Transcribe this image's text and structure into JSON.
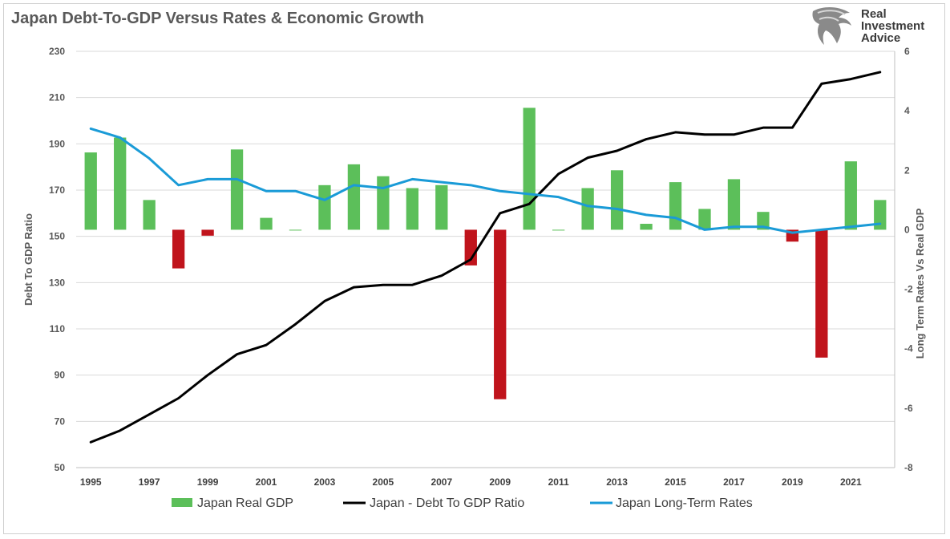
{
  "chart_data": {
    "type": "bar+line",
    "title": "Japan Debt-To-GDP Versus Rates & Economic Growth",
    "ylabel_left": "Debt To GDP Ratio",
    "ylabel_right": "Long Term Rates Vs Real GDP",
    "ylim_left": [
      50,
      230
    ],
    "ylim_right": [
      -8,
      6
    ],
    "yticks_left": [
      "50",
      "70",
      "90",
      "110",
      "130",
      "150",
      "170",
      "190",
      "210",
      "230"
    ],
    "yticks_right": [
      "-8",
      "-6",
      "-4",
      "-2",
      "0",
      "2",
      "4",
      "6"
    ],
    "x": [
      1995,
      1996,
      1997,
      1998,
      1999,
      2000,
      2001,
      2002,
      2003,
      2004,
      2005,
      2006,
      2007,
      2008,
      2009,
      2010,
      2011,
      2012,
      2013,
      2014,
      2015,
      2016,
      2017,
      2018,
      2019,
      2020,
      2021,
      2022
    ],
    "xticks": [
      "1995",
      "1997",
      "1999",
      "2001",
      "2003",
      "2005",
      "2007",
      "2009",
      "2011",
      "2013",
      "2015",
      "2017",
      "2019",
      "2021"
    ],
    "series": [
      {
        "name": "Japan Real GDP",
        "type": "bar",
        "axis": "right",
        "values": [
          2.6,
          3.1,
          1.0,
          -1.3,
          -0.2,
          2.7,
          0.4,
          0.0,
          1.5,
          2.2,
          1.8,
          1.4,
          1.5,
          -1.2,
          -5.7,
          4.1,
          0.0,
          1.4,
          2.0,
          0.2,
          1.6,
          0.7,
          1.7,
          0.6,
          -0.4,
          -4.3,
          2.3,
          1.0
        ],
        "color_positive": "#5cbf5a",
        "color_negative": "#c0141c"
      },
      {
        "name": "Japan - Debt To GDP Ratio",
        "type": "line",
        "axis": "left",
        "values": [
          61,
          66,
          73,
          80,
          90,
          99,
          103,
          112,
          122,
          128,
          129,
          129,
          133,
          140,
          160,
          164,
          177,
          184,
          187,
          192,
          195,
          194,
          194,
          197,
          197,
          216,
          218,
          221
        ],
        "color": "#000000"
      },
      {
        "name": "Japan Long-Term Rates",
        "type": "line",
        "axis": "right",
        "values": [
          3.4,
          3.1,
          2.4,
          1.5,
          1.7,
          1.7,
          1.3,
          1.3,
          1.0,
          1.5,
          1.4,
          1.7,
          1.6,
          1.5,
          1.3,
          1.2,
          1.1,
          0.8,
          0.7,
          0.5,
          0.4,
          0.0,
          0.1,
          0.1,
          -0.1,
          0.0,
          0.1,
          0.2
        ],
        "color": "#1a9bd7"
      }
    ],
    "grid": true,
    "legend": "bottom"
  },
  "logo": {
    "lines": [
      "Real",
      "Investment",
      "Advice"
    ]
  }
}
